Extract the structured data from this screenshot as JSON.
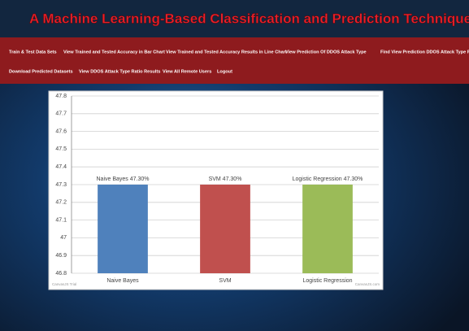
{
  "header": {
    "title": "A Machine Learning-Based Classification and Prediction Technique for DDoS Attacks"
  },
  "nav": {
    "row1": [
      "Train & Test Data Sets",
      "View Trained and Tested Accuracy in Bar Chart",
      "View Trained and Tested Accuracy Results in Line Chart",
      "View Prediction Of DDOS Attack Type",
      "Find View Prediction DDOS Attack Type Ratio"
    ],
    "row2": [
      "Download Predicted Datasets",
      "View DDOS Attack Type Ratio Results",
      "View All Remote Users",
      "Logout"
    ]
  },
  "chart_data": {
    "type": "bar",
    "categories": [
      "Naive Bayes",
      "SVM",
      "Logistic Regression"
    ],
    "values": [
      47.3,
      47.3,
      47.3
    ],
    "value_labels": [
      "Naive Bayes 47.30%",
      "SVM 47.30%",
      "Logistic Regression 47.30%"
    ],
    "colors": [
      "#4f81bc",
      "#c0504e",
      "#9bbb58"
    ],
    "ylim": [
      46.8,
      47.8
    ],
    "yticks": [
      46.8,
      46.9,
      47,
      47.1,
      47.2,
      47.3,
      47.4,
      47.5,
      47.6,
      47.7,
      47.8
    ],
    "grid": true,
    "watermarks": [
      "CanvasJS Trial",
      "CanvasJS.com"
    ]
  }
}
